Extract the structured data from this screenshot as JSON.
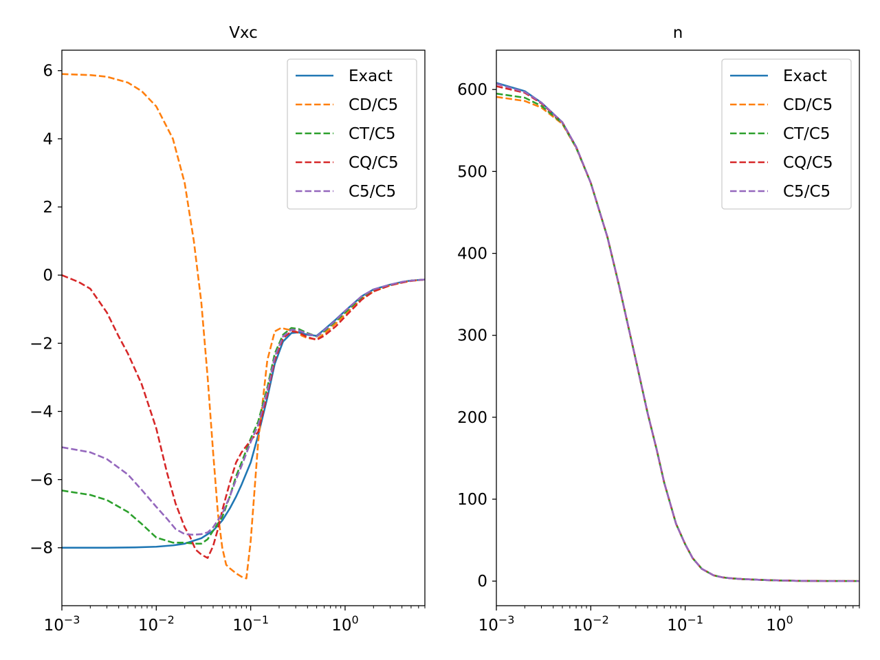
{
  "colors": {
    "Exact": "#1f77b4",
    "CD/C5": "#ff7f0e",
    "CT/C5": "#2ca02c",
    "CQ/C5": "#d62728",
    "C5/C5": "#9467bd"
  },
  "chart_data": [
    {
      "type": "line",
      "title": "Vxc",
      "xlabel": "",
      "ylabel": "",
      "xscale": "log",
      "xlim": [
        0.001,
        7.0
      ],
      "ylim": [
        -9.7,
        6.6
      ],
      "x_ticks": [
        0.001,
        0.01,
        0.1,
        1
      ],
      "x_tick_labels": [
        [
          "10",
          "−3"
        ],
        [
          "10",
          "−2"
        ],
        [
          "10",
          "−1"
        ],
        [
          "10",
          "0"
        ]
      ],
      "y_ticks": [
        -8,
        -6,
        -4,
        -2,
        0,
        2,
        4,
        6
      ],
      "y_tick_labels": [
        "−8",
        "−6",
        "−4",
        "−2",
        "0",
        "2",
        "4",
        "6"
      ],
      "grid": false,
      "legend_position": "top-right",
      "series": [
        {
          "name": "Exact",
          "style": "solid",
          "x": [
            0.001,
            0.003,
            0.006,
            0.01,
            0.015,
            0.02,
            0.03,
            0.04,
            0.05,
            0.06,
            0.07,
            0.08,
            0.1,
            0.12,
            0.15,
            0.18,
            0.22,
            0.27,
            0.32,
            0.4,
            0.5,
            0.6,
            0.8,
            1.0,
            1.5,
            2.0,
            3.0,
            4.0,
            5.0,
            7.0
          ],
          "y": [
            -8.0,
            -8.0,
            -7.99,
            -7.97,
            -7.93,
            -7.88,
            -7.72,
            -7.5,
            -7.2,
            -6.85,
            -6.5,
            -6.15,
            -5.5,
            -4.7,
            -3.6,
            -2.6,
            -1.95,
            -1.7,
            -1.68,
            -1.75,
            -1.78,
            -1.6,
            -1.3,
            -1.05,
            -0.62,
            -0.42,
            -0.28,
            -0.2,
            -0.16,
            -0.13
          ]
        },
        {
          "name": "CD/C5",
          "style": "dashed",
          "x": [
            0.001,
            0.002,
            0.003,
            0.005,
            0.007,
            0.01,
            0.015,
            0.02,
            0.025,
            0.03,
            0.035,
            0.04,
            0.045,
            0.05,
            0.055,
            0.06,
            0.07,
            0.08,
            0.09,
            0.1,
            0.12,
            0.15,
            0.18,
            0.21,
            0.25,
            0.3,
            0.35,
            0.4,
            0.5,
            0.6,
            0.8,
            1.0,
            1.5,
            2.0,
            3.0,
            4.0,
            5.0,
            7.0
          ],
          "y": [
            5.9,
            5.87,
            5.82,
            5.65,
            5.4,
            4.95,
            4.0,
            2.7,
            1.0,
            -0.8,
            -3.0,
            -5.2,
            -7.0,
            -8.0,
            -8.5,
            -8.6,
            -8.75,
            -8.85,
            -8.9,
            -7.8,
            -4.9,
            -2.5,
            -1.65,
            -1.55,
            -1.6,
            -1.65,
            -1.78,
            -1.85,
            -1.88,
            -1.72,
            -1.42,
            -1.15,
            -0.7,
            -0.48,
            -0.3,
            -0.22,
            -0.17,
            -0.13
          ]
        },
        {
          "name": "CT/C5",
          "style": "dashed",
          "x": [
            0.001,
            0.002,
            0.003,
            0.005,
            0.007,
            0.01,
            0.015,
            0.02,
            0.025,
            0.03,
            0.035,
            0.04,
            0.05,
            0.06,
            0.07,
            0.08,
            0.1,
            0.12,
            0.15,
            0.18,
            0.22,
            0.27,
            0.32,
            0.4,
            0.5,
            0.6,
            0.8,
            1.0,
            1.5,
            2.0,
            3.0,
            4.0,
            5.0,
            7.0
          ],
          "y": [
            -6.32,
            -6.45,
            -6.6,
            -6.95,
            -7.3,
            -7.7,
            -7.85,
            -7.85,
            -7.88,
            -7.88,
            -7.75,
            -7.5,
            -7.1,
            -6.5,
            -5.9,
            -5.5,
            -4.8,
            -4.3,
            -3.3,
            -2.3,
            -1.75,
            -1.55,
            -1.58,
            -1.7,
            -1.8,
            -1.65,
            -1.35,
            -1.1,
            -0.65,
            -0.45,
            -0.3,
            -0.21,
            -0.16,
            -0.13
          ]
        },
        {
          "name": "CQ/C5",
          "style": "dashed",
          "x": [
            0.001,
            0.0015,
            0.002,
            0.003,
            0.004,
            0.005,
            0.007,
            0.01,
            0.013,
            0.016,
            0.02,
            0.023,
            0.026,
            0.03,
            0.035,
            0.04,
            0.045,
            0.05,
            0.06,
            0.07,
            0.08,
            0.1,
            0.12,
            0.15,
            0.18,
            0.22,
            0.27,
            0.32,
            0.4,
            0.5,
            0.6,
            0.8,
            1.0,
            1.5,
            2.0,
            3.0,
            4.0,
            5.0,
            7.0
          ],
          "y": [
            0.0,
            -0.2,
            -0.4,
            -1.1,
            -1.8,
            -2.3,
            -3.2,
            -4.5,
            -5.8,
            -6.7,
            -7.4,
            -7.7,
            -8.05,
            -8.2,
            -8.3,
            -7.95,
            -7.45,
            -6.9,
            -6.1,
            -5.5,
            -5.2,
            -4.85,
            -4.6,
            -3.5,
            -2.5,
            -1.85,
            -1.65,
            -1.68,
            -1.82,
            -1.9,
            -1.78,
            -1.5,
            -1.22,
            -0.72,
            -0.48,
            -0.3,
            -0.22,
            -0.17,
            -0.13
          ]
        },
        {
          "name": "C5/C5",
          "style": "dashed",
          "x": [
            0.001,
            0.002,
            0.003,
            0.005,
            0.007,
            0.01,
            0.013,
            0.016,
            0.02,
            0.025,
            0.03,
            0.035,
            0.04,
            0.05,
            0.06,
            0.07,
            0.08,
            0.1,
            0.12,
            0.15,
            0.18,
            0.22,
            0.27,
            0.32,
            0.4,
            0.5,
            0.6,
            0.8,
            1.0,
            1.5,
            2.0,
            3.0,
            4.0,
            5.0,
            7.0
          ],
          "y": [
            -5.05,
            -5.2,
            -5.4,
            -5.85,
            -6.3,
            -6.8,
            -7.15,
            -7.45,
            -7.6,
            -7.62,
            -7.6,
            -7.55,
            -7.4,
            -7.0,
            -6.5,
            -6.0,
            -5.6,
            -4.9,
            -4.4,
            -3.4,
            -2.4,
            -1.8,
            -1.6,
            -1.62,
            -1.72,
            -1.8,
            -1.62,
            -1.32,
            -1.05,
            -0.62,
            -0.42,
            -0.28,
            -0.2,
            -0.16,
            -0.13
          ]
        }
      ]
    },
    {
      "type": "line",
      "title": "n",
      "xlabel": "",
      "ylabel": "",
      "xscale": "log",
      "xlim": [
        0.001,
        7.0
      ],
      "ylim": [
        -30,
        648
      ],
      "x_ticks": [
        0.001,
        0.01,
        0.1,
        1
      ],
      "x_tick_labels": [
        [
          "10",
          "−3"
        ],
        [
          "10",
          "−2"
        ],
        [
          "10",
          "−1"
        ],
        [
          "10",
          "0"
        ]
      ],
      "y_ticks": [
        0,
        100,
        200,
        300,
        400,
        500,
        600
      ],
      "y_tick_labels": [
        "0",
        "100",
        "200",
        "300",
        "400",
        "500",
        "600"
      ],
      "grid": false,
      "legend_position": "top-right",
      "series": [
        {
          "name": "Exact",
          "style": "solid",
          "x": [
            0.001,
            0.002,
            0.003,
            0.005,
            0.007,
            0.01,
            0.015,
            0.02,
            0.03,
            0.04,
            0.05,
            0.06,
            0.08,
            0.1,
            0.12,
            0.15,
            0.2,
            0.25,
            0.3,
            0.4,
            0.5,
            0.7,
            1.0,
            1.5,
            2.0,
            3.0,
            5.0,
            7.0
          ],
          "y": [
            608,
            598,
            584,
            560,
            530,
            486,
            420,
            360,
            270,
            205,
            160,
            120,
            70,
            45,
            28,
            15,
            7,
            4.5,
            3.5,
            2.5,
            2.0,
            1.3,
            0.8,
            0.4,
            0.25,
            0.1,
            0.03,
            0.01
          ]
        },
        {
          "name": "CD/C5",
          "style": "dashed",
          "x": [
            0.001,
            0.002,
            0.003,
            0.005,
            0.007,
            0.01,
            0.015,
            0.02,
            0.03,
            0.04,
            0.05,
            0.06,
            0.08,
            0.1,
            0.12,
            0.15,
            0.2,
            0.25,
            0.3,
            0.4,
            0.5,
            0.7,
            1.0,
            1.5,
            2.0,
            3.0,
            5.0,
            7.0
          ],
          "y": [
            591,
            586,
            578,
            558,
            529,
            486,
            420,
            360,
            270,
            205,
            160,
            120,
            70,
            45,
            28,
            15,
            7,
            4.5,
            3.5,
            2.5,
            2.0,
            1.3,
            0.8,
            0.4,
            0.25,
            0.1,
            0.03,
            0.01
          ]
        },
        {
          "name": "CT/C5",
          "style": "dashed",
          "x": [
            0.001,
            0.002,
            0.003,
            0.005,
            0.007,
            0.01,
            0.015,
            0.02,
            0.03,
            0.04,
            0.05,
            0.06,
            0.08,
            0.1,
            0.12,
            0.15,
            0.2,
            0.25,
            0.3,
            0.4,
            0.5,
            0.7,
            1.0,
            1.5,
            2.0,
            3.0,
            5.0,
            7.0
          ],
          "y": [
            595,
            590,
            580,
            559,
            529,
            486,
            420,
            360,
            270,
            205,
            160,
            120,
            70,
            45,
            28,
            15,
            7,
            4.5,
            3.5,
            2.5,
            2.0,
            1.3,
            0.8,
            0.4,
            0.25,
            0.1,
            0.03,
            0.01
          ]
        },
        {
          "name": "CQ/C5",
          "style": "dashed",
          "x": [
            0.001,
            0.002,
            0.003,
            0.005,
            0.007,
            0.01,
            0.015,
            0.02,
            0.03,
            0.04,
            0.05,
            0.06,
            0.08,
            0.1,
            0.12,
            0.15,
            0.2,
            0.25,
            0.3,
            0.4,
            0.5,
            0.7,
            1.0,
            1.5,
            2.0,
            3.0,
            5.0,
            7.0
          ],
          "y": [
            604,
            596,
            583,
            560,
            530,
            486,
            420,
            360,
            270,
            205,
            160,
            120,
            70,
            45,
            28,
            15,
            7,
            4.5,
            3.5,
            2.5,
            2.0,
            1.3,
            0.8,
            0.4,
            0.25,
            0.1,
            0.03,
            0.01
          ]
        },
        {
          "name": "C5/C5",
          "style": "dashed",
          "x": [
            0.001,
            0.002,
            0.003,
            0.005,
            0.007,
            0.01,
            0.015,
            0.02,
            0.03,
            0.04,
            0.05,
            0.06,
            0.08,
            0.1,
            0.12,
            0.15,
            0.2,
            0.25,
            0.3,
            0.4,
            0.5,
            0.7,
            1.0,
            1.5,
            2.0,
            3.0,
            5.0,
            7.0
          ],
          "y": [
            607,
            597,
            584,
            560,
            530,
            486,
            420,
            360,
            270,
            205,
            160,
            120,
            70,
            45,
            28,
            15,
            7,
            4.5,
            3.5,
            2.5,
            2.0,
            1.3,
            0.8,
            0.4,
            0.25,
            0.1,
            0.03,
            0.01
          ]
        }
      ]
    }
  ]
}
